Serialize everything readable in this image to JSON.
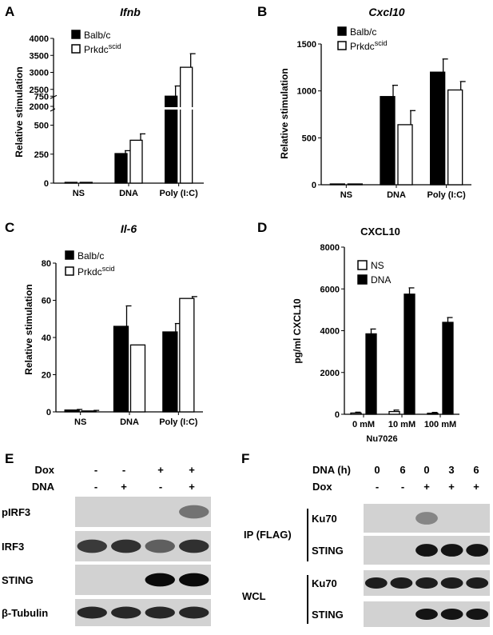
{
  "chart_data": [
    {
      "panel": "A",
      "type": "bar",
      "title": "Ifnb",
      "ylabel": "Relative stimulation",
      "categories": [
        "NS",
        "DNA",
        "Poly (I:C)"
      ],
      "series": [
        {
          "name": "Balb/c",
          "values": [
            0,
            255,
            2300
          ],
          "errors": [
            0,
            25,
            300
          ]
        },
        {
          "name": "Prkdc",
          "name_sup": "scid",
          "values": [
            0,
            370,
            3150
          ],
          "errors": [
            0,
            55,
            400
          ]
        }
      ],
      "y_broken": true,
      "yticks_lower": [
        "0",
        "250",
        "500",
        "750"
      ],
      "yticks_upper": [
        "2000",
        "2500",
        "3000",
        "3500",
        "4000"
      ],
      "ylim": [
        0,
        4000
      ],
      "legend": "top-left"
    },
    {
      "panel": "B",
      "type": "bar",
      "title": "Cxcl10",
      "ylabel": "Relative stimulation",
      "categories": [
        "NS",
        "DNA",
        "Poly (I:C)"
      ],
      "series": [
        {
          "name": "Balb/c",
          "values": [
            0,
            940,
            1200
          ],
          "errors": [
            0,
            120,
            140
          ]
        },
        {
          "name": "Prkdc",
          "name_sup": "scid",
          "values": [
            0,
            640,
            1010
          ],
          "errors": [
            0,
            150,
            90
          ]
        }
      ],
      "yticks": [
        "0",
        "500",
        "1000",
        "1500"
      ],
      "ylim": [
        0,
        1500
      ],
      "legend": "top-left"
    },
    {
      "panel": "C",
      "type": "bar",
      "title": "Il-6",
      "ylabel": "Relative stimulation",
      "categories": [
        "NS",
        "DNA",
        "Poly (I:C)"
      ],
      "series": [
        {
          "name": "Balb/c",
          "values": [
            1,
            46,
            43
          ],
          "errors": [
            0.3,
            11,
            4.5
          ]
        },
        {
          "name": "Prkdc",
          "name_sup": "scid",
          "values": [
            0.5,
            36,
            61
          ],
          "errors": [
            0.3,
            0,
            1
          ]
        }
      ],
      "yticks": [
        "0",
        "20",
        "40",
        "60",
        "80"
      ],
      "ylim": [
        0,
        80
      ],
      "legend": "top-left"
    },
    {
      "panel": "D",
      "type": "bar",
      "title": "CXCL10",
      "ylabel": "pg/ml CXCL10",
      "xlabel": "Nu7026",
      "categories": [
        "0 mM",
        "10 mM",
        "100 mM"
      ],
      "series": [
        {
          "name": "NS",
          "values": [
            60,
            130,
            50
          ],
          "errors": [
            40,
            70,
            40
          ]
        },
        {
          "name": "DNA",
          "values": [
            3850,
            5750,
            4400
          ],
          "errors": [
            230,
            300,
            230
          ]
        }
      ],
      "yticks": [
        "0",
        "2000",
        "4000",
        "6000",
        "8000"
      ],
      "ylim": [
        0,
        8000
      ],
      "legend": "top-left"
    }
  ],
  "blot_e": {
    "letter": "E",
    "header_rows": [
      {
        "label": "Dox",
        "signs": [
          "-",
          "-",
          "+",
          "+"
        ]
      },
      {
        "label": "DNA",
        "signs": [
          "-",
          "+",
          "-",
          "+"
        ]
      }
    ],
    "blots": [
      {
        "label": "pIRF3",
        "bands": [
          0,
          0,
          0,
          0.45
        ]
      },
      {
        "label": "IRF3",
        "bands": [
          0.75,
          0.8,
          0.55,
          0.8
        ]
      },
      {
        "label": "STING",
        "bands": [
          0,
          0,
          1,
          1
        ]
      },
      {
        "label": "β-Tubulin",
        "bands": [
          0.85,
          0.85,
          0.85,
          0.85
        ]
      }
    ]
  },
  "blot_f": {
    "letter": "F",
    "header_rows": [
      {
        "label": "DNA (h)",
        "signs": [
          "0",
          "6",
          "0",
          "3",
          "6"
        ]
      },
      {
        "label": "Dox",
        "signs": [
          "-",
          "-",
          "+",
          "+",
          "+"
        ]
      }
    ],
    "groups": [
      {
        "label": "IP (FLAG)",
        "blots": [
          {
            "label": "Ku70",
            "bands": [
              0,
              0,
              0.35,
              0,
              0
            ]
          },
          {
            "label": "STING",
            "bands": [
              0,
              0,
              0.95,
              0.95,
              0.95
            ]
          }
        ]
      },
      {
        "label": "WCL",
        "blots": [
          {
            "label": "Ku70",
            "bands": [
              0.9,
              0.9,
              0.9,
              0.9,
              0.9
            ]
          },
          {
            "label": "STING",
            "bands": [
              0,
              0,
              0.95,
              0.95,
              0.95
            ]
          }
        ]
      }
    ]
  }
}
